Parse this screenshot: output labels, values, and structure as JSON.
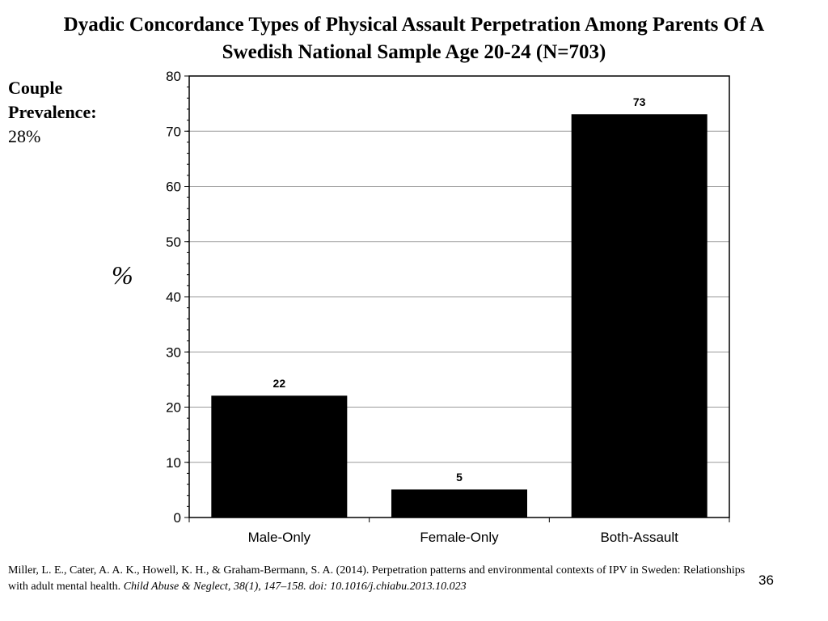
{
  "slide": {
    "title_line1": "Dyadic Concordance Types of Physical Assault Perpetration Among Parents Of A",
    "title_line2": "Swedish National Sample Age 20-24 (N=703)",
    "prevalence_label": "Couple Prevalence:",
    "prevalence_value": "28%",
    "citation_main": "Miller, L. E., Cater, A. A. K., Howell, K. H., & Graham-Bermann, S. A. (2014). Perpetration patterns and environmental contexts of IPV in Sweden: Relationships with adult mental health. ",
    "citation_italic": "Child Abuse & Neglect, 38(1), 147–158. doi: 10.1016/j.chiabu.2013.10.023",
    "page_number": "36"
  },
  "chart_data": {
    "type": "bar",
    "categories": [
      "Male-Only",
      "Female-Only",
      "Both-Assault"
    ],
    "values": [
      22,
      5,
      73
    ],
    "data_labels": [
      "22",
      "5",
      "73"
    ],
    "ylabel": "%",
    "xlabel": "",
    "ylim": [
      0,
      80
    ],
    "yticks": [
      0,
      10,
      20,
      30,
      40,
      50,
      60,
      70,
      80
    ],
    "grid": true,
    "bar_color": "#000000",
    "legend": "none"
  }
}
